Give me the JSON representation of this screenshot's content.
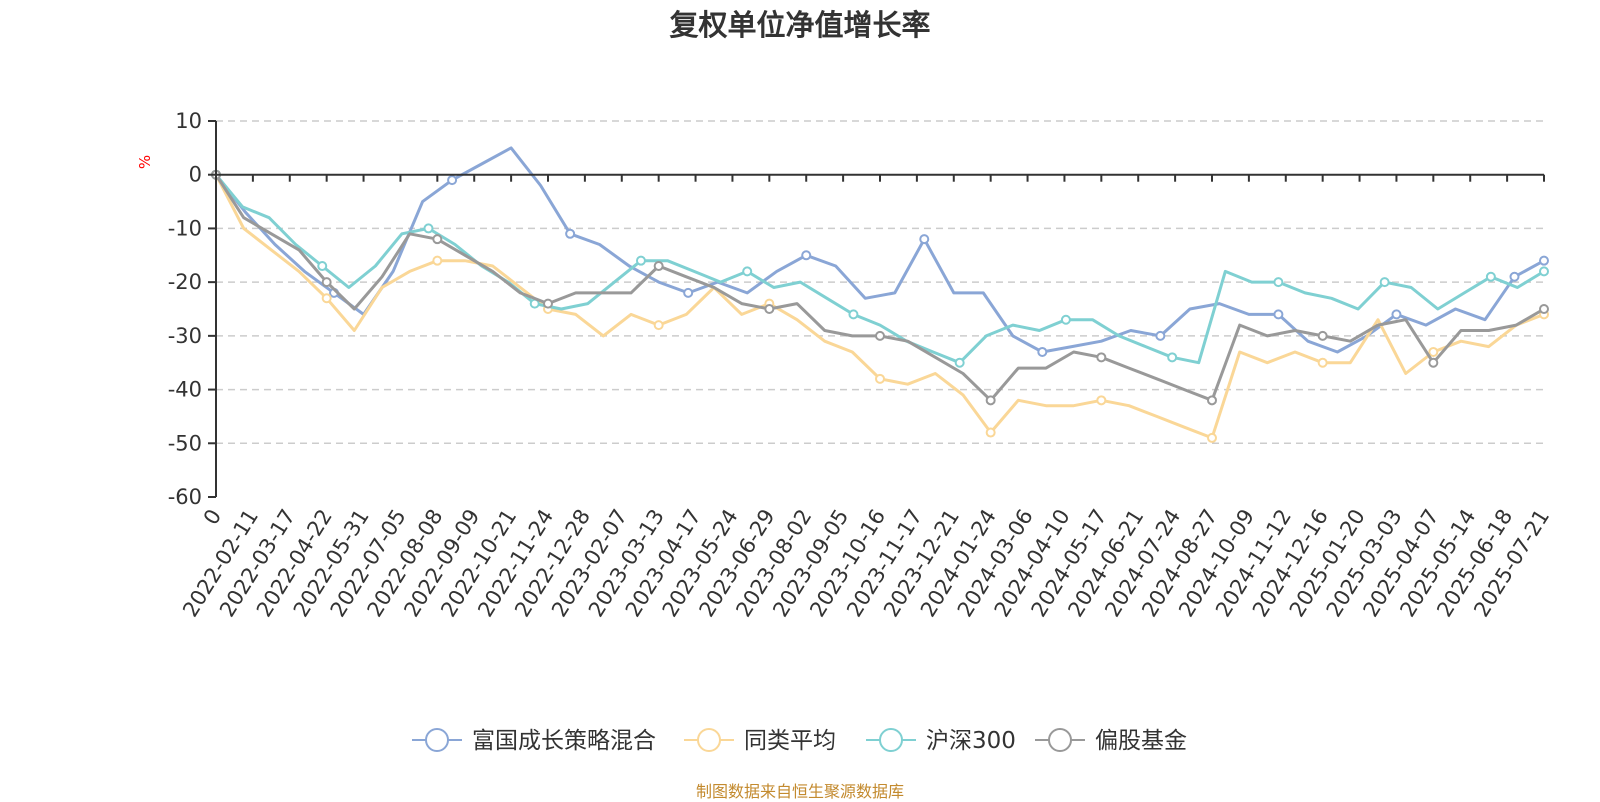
{
  "title": "复权单位净值增长率",
  "source_note": "制图数据来自恒生聚源数据库",
  "chart_data": {
    "type": "line",
    "title": "复权单位净值增长率",
    "ylabel": "%",
    "ylim": [
      -60,
      10
    ],
    "yticks": [
      10,
      0,
      -10,
      -20,
      -30,
      -40,
      -50,
      -60
    ],
    "grid": true,
    "legend_position": "bottom",
    "x_tick_labels": [
      "0",
      "2022-02-11",
      "2022-03-17",
      "2022-04-22",
      "2022-05-31",
      "2022-07-05",
      "2022-08-08",
      "2022-09-09",
      "2022-10-21",
      "2022-11-24",
      "2022-12-28",
      "2023-02-07",
      "2023-03-13",
      "2023-04-17",
      "2023-05-24",
      "2023-06-29",
      "2023-08-02",
      "2023-09-05",
      "2023-10-16",
      "2023-11-17",
      "2023-12-21",
      "2024-01-24",
      "2024-03-06",
      "2024-04-10",
      "2024-05-17",
      "2024-06-21",
      "2024-07-24",
      "2024-08-27",
      "2024-10-09",
      "2024-11-12",
      "2024-12-16",
      "2025-01-20",
      "2025-03-03",
      "2025-04-07",
      "2025-05-14",
      "2025-06-18",
      "2025-07-21"
    ],
    "series": [
      {
        "name": "富国成长策略混合",
        "color": "#8aa6d6",
        "values": [
          0,
          -7,
          -13,
          -18,
          -22,
          -26,
          -18,
          -5,
          -1,
          2,
          5,
          -2,
          -11,
          -13,
          -17,
          -20,
          -22,
          -20,
          -22,
          -18,
          -15,
          -17,
          -23,
          -22,
          -12,
          -22,
          -22,
          -30,
          -33,
          -32,
          -31,
          -29,
          -30,
          -25,
          -24,
          -26,
          -26,
          -31,
          -33,
          -30,
          -26,
          -28,
          -25,
          -27,
          -19,
          -16
        ]
      },
      {
        "name": "同类平均",
        "color": "#fad797",
        "values": [
          0,
          -10,
          -14,
          -18,
          -23,
          -29,
          -21,
          -18,
          -16,
          -16,
          -17,
          -21,
          -25,
          -26,
          -30,
          -26,
          -28,
          -26,
          -21,
          -26,
          -24,
          -27,
          -31,
          -33,
          -38,
          -39,
          -37,
          -41,
          -48,
          -42,
          -43,
          -43,
          -42,
          -43,
          -45,
          -47,
          -49,
          -33,
          -35,
          -33,
          -35,
          -35,
          -27,
          -37,
          -33,
          -31,
          -32,
          -28,
          -26
        ]
      },
      {
        "name": "沪深300",
        "color": "#7fd0d2",
        "values": [
          0,
          -6,
          -8,
          -13,
          -17,
          -21,
          -17,
          -11,
          -10,
          -13,
          -17,
          -20,
          -24,
          -25,
          -24,
          -20,
          -16,
          -16,
          -18,
          -20,
          -18,
          -21,
          -20,
          -23,
          -26,
          -28,
          -31,
          -33,
          -35,
          -30,
          -28,
          -29,
          -27,
          -27,
          -30,
          -32,
          -34,
          -35,
          -18,
          -20,
          -20,
          -22,
          -23,
          -25,
          -20,
          -21,
          -25,
          -22,
          -19,
          -21,
          -18
        ]
      },
      {
        "name": "偏股基金",
        "color": "#999999",
        "values": [
          0,
          -8,
          -11,
          -14,
          -20,
          -25,
          -19,
          -11,
          -12,
          -15,
          -18,
          -22,
          -24,
          -22,
          -22,
          -22,
          -17,
          -19,
          -21,
          -24,
          -25,
          -24,
          -29,
          -30,
          -30,
          -31,
          -34,
          -37,
          -42,
          -36,
          -36,
          -33,
          -34,
          -36,
          -38,
          -40,
          -42,
          -28,
          -30,
          -29,
          -30,
          -31,
          -28,
          -27,
          -35,
          -29,
          -29,
          -28,
          -25
        ]
      }
    ]
  }
}
